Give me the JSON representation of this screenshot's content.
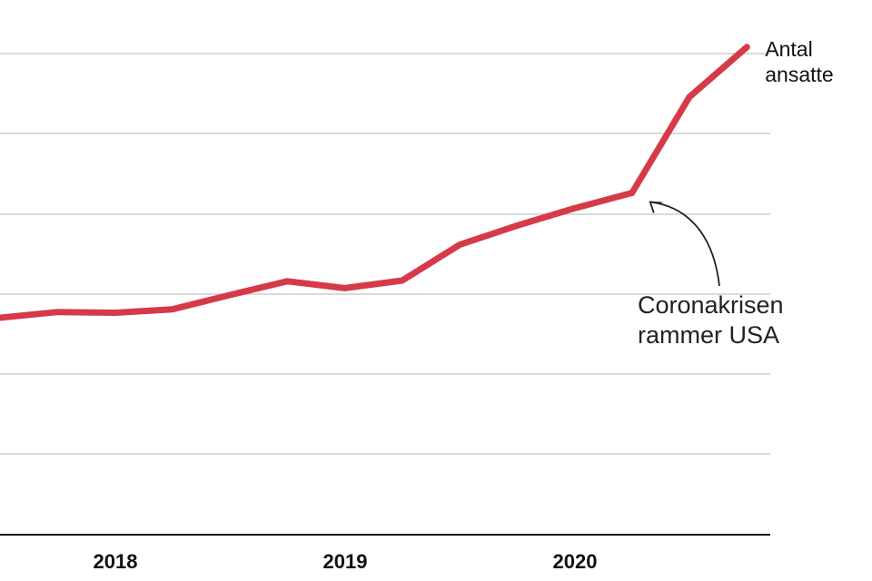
{
  "chart_data": {
    "type": "line",
    "title": "",
    "xlabel": "",
    "ylabel": "",
    "x_ticks": [
      "2018",
      "2019",
      "2020"
    ],
    "grid": true,
    "color": "#d63a49",
    "series": [
      {
        "name_lines": [
          "Antal",
          "ansatte"
        ],
        "x": [
          2017.5,
          2017.75,
          2018.0,
          2018.25,
          2018.5,
          2018.75,
          2019.0,
          2019.25,
          2019.5,
          2019.75,
          2020.0,
          2020.25,
          2020.5,
          2020.75
        ],
        "y": [
          3.35,
          3.5,
          3.48,
          3.57,
          3.94,
          4.3,
          4.12,
          4.32,
          5.25,
          5.75,
          6.2,
          6.6,
          9.1,
          10.4
        ]
      }
    ],
    "annotation": {
      "lines": [
        "Coronakrisen",
        "rammer USA"
      ],
      "target_x": 2020.25,
      "target_y": 6.6
    }
  }
}
